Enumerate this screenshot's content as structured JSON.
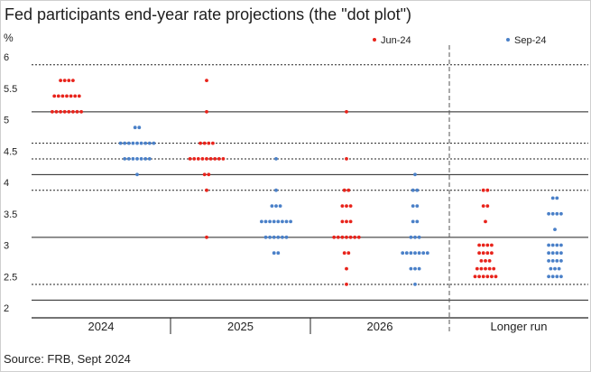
{
  "title": "Fed participants end-year rate projections (the \"dot plot\")",
  "unit_label": "%",
  "source": "Source: FRB, Sept 2024",
  "colors": {
    "jun": "#e8231b",
    "sep": "#4a80c8"
  },
  "chart_data": {
    "type": "scatter",
    "title": "Fed participants end-year rate projections (the \"dot plot\")",
    "ylabel": "%",
    "ylim": [
      1.9,
      6.1
    ],
    "y_ticks": [
      2,
      2.5,
      3,
      3.5,
      4,
      4.5,
      5,
      5.5,
      6
    ],
    "categories": [
      "2024",
      "2025",
      "2026",
      "Longer run"
    ],
    "legend": {
      "position": "top-right",
      "entries": [
        "Jun-24",
        "Sep-24"
      ]
    },
    "reference_lines": {
      "solid": [
        2.125,
        3.125,
        4.125,
        5.125
      ],
      "dotted": [
        2.375,
        3.875,
        4.375,
        4.625,
        5.875
      ]
    },
    "separator": "dashed vertical line before Longer run",
    "series": [
      {
        "name": "Jun-24",
        "color": "#e8231b",
        "points": {
          "2024": [
            {
              "y": 5.625,
              "count": 4
            },
            {
              "y": 5.375,
              "count": 7
            },
            {
              "y": 5.125,
              "count": 8
            }
          ],
          "2025": [
            {
              "y": 5.625,
              "count": 1
            },
            {
              "y": 5.125,
              "count": 1
            },
            {
              "y": 4.625,
              "count": 4
            },
            {
              "y": 4.375,
              "count": 9
            },
            {
              "y": 4.125,
              "count": 2
            },
            {
              "y": 3.875,
              "count": 1
            },
            {
              "y": 3.125,
              "count": 1
            }
          ],
          "2026": [
            {
              "y": 5.125,
              "count": 1
            },
            {
              "y": 4.375,
              "count": 1
            },
            {
              "y": 3.875,
              "count": 2
            },
            {
              "y": 3.625,
              "count": 3
            },
            {
              "y": 3.375,
              "count": 3
            },
            {
              "y": 3.125,
              "count": 7
            },
            {
              "y": 2.875,
              "count": 2
            },
            {
              "y": 2.625,
              "count": 1
            },
            {
              "y": 2.375,
              "count": 1
            }
          ],
          "Longer run": [
            {
              "y": 3.875,
              "count": 2
            },
            {
              "y": 3.625,
              "count": 2
            },
            {
              "y": 3.375,
              "count": 1
            },
            {
              "y": 3.0,
              "count": 4
            },
            {
              "y": 2.875,
              "count": 4
            },
            {
              "y": 2.75,
              "count": 3
            },
            {
              "y": 2.625,
              "count": 5
            },
            {
              "y": 2.5,
              "count": 6
            }
          ]
        }
      },
      {
        "name": "Sep-24",
        "color": "#4a80c8",
        "points": {
          "2024": [
            {
              "y": 4.875,
              "count": 2
            },
            {
              "y": 4.625,
              "count": 9
            },
            {
              "y": 4.375,
              "count": 7
            },
            {
              "y": 4.125,
              "count": 1
            }
          ],
          "2025": [
            {
              "y": 4.375,
              "count": 1
            },
            {
              "y": 3.875,
              "count": 1
            },
            {
              "y": 3.625,
              "count": 3
            },
            {
              "y": 3.375,
              "count": 8
            },
            {
              "y": 3.125,
              "count": 6
            },
            {
              "y": 2.875,
              "count": 2
            }
          ],
          "2026": [
            {
              "y": 4.125,
              "count": 1
            },
            {
              "y": 3.875,
              "count": 2
            },
            {
              "y": 3.625,
              "count": 2
            },
            {
              "y": 3.375,
              "count": 2
            },
            {
              "y": 3.125,
              "count": 3
            },
            {
              "y": 2.875,
              "count": 7
            },
            {
              "y": 2.625,
              "count": 3
            },
            {
              "y": 2.375,
              "count": 1
            }
          ],
          "Longer run": [
            {
              "y": 3.75,
              "count": 2
            },
            {
              "y": 3.5,
              "count": 4
            },
            {
              "y": 3.25,
              "count": 1
            },
            {
              "y": 3.0,
              "count": 4
            },
            {
              "y": 2.875,
              "count": 4
            },
            {
              "y": 2.75,
              "count": 4
            },
            {
              "y": 2.625,
              "count": 3
            },
            {
              "y": 2.5,
              "count": 4
            }
          ]
        }
      }
    ]
  }
}
